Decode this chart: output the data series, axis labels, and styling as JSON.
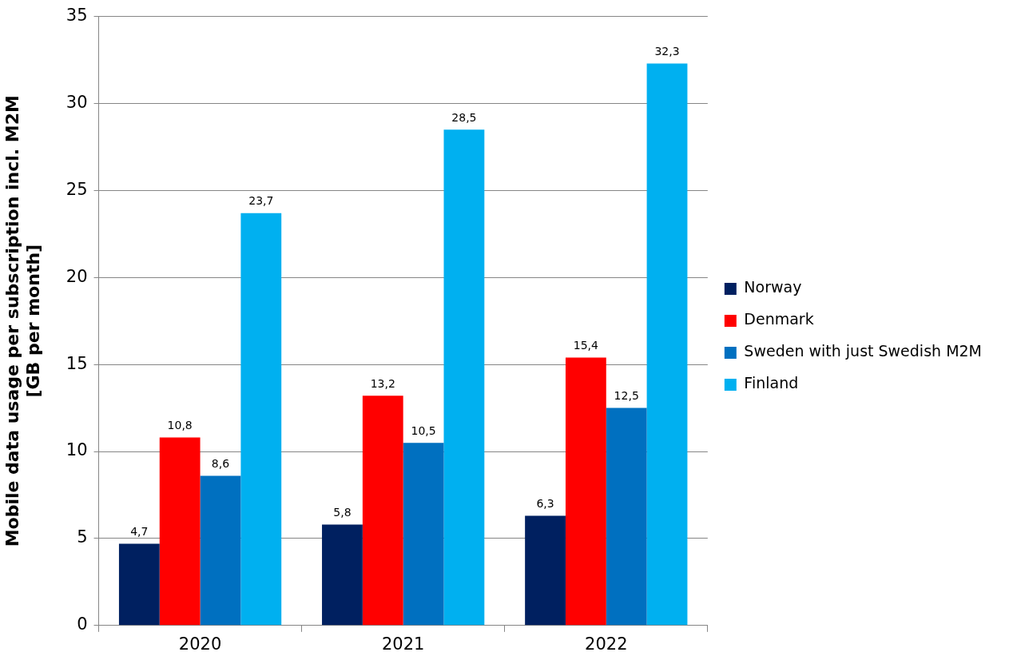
{
  "chart_data": {
    "type": "bar",
    "ylabel": "Mobile data usage per subscription incl. M2M [GB per month]",
    "categories": [
      "2020",
      "2021",
      "2022"
    ],
    "series": [
      {
        "name": "Norway",
        "color": "#002060",
        "values": [
          4.7,
          5.8,
          6.3
        ],
        "value_labels": [
          "4,7",
          "5,8",
          "6,3"
        ]
      },
      {
        "name": "Denmark",
        "color": "#ff0000",
        "values": [
          10.8,
          13.2,
          15.4
        ],
        "value_labels": [
          "10,8",
          "13,2",
          "15,4"
        ]
      },
      {
        "name": "Sweden with just Swedish M2M",
        "color": "#0070c0",
        "values": [
          8.6,
          10.5,
          12.5
        ],
        "value_labels": [
          "8,6",
          "10,5",
          "12,5"
        ]
      },
      {
        "name": "Finland",
        "color": "#00b0f0",
        "values": [
          23.7,
          28.5,
          32.3
        ],
        "value_labels": [
          "23,7",
          "28,5",
          "32,3"
        ]
      }
    ],
    "ylim": [
      0,
      35
    ],
    "yticks": [
      0,
      5,
      10,
      15,
      20,
      25,
      30,
      35
    ],
    "grid": "y",
    "legend": "right"
  }
}
